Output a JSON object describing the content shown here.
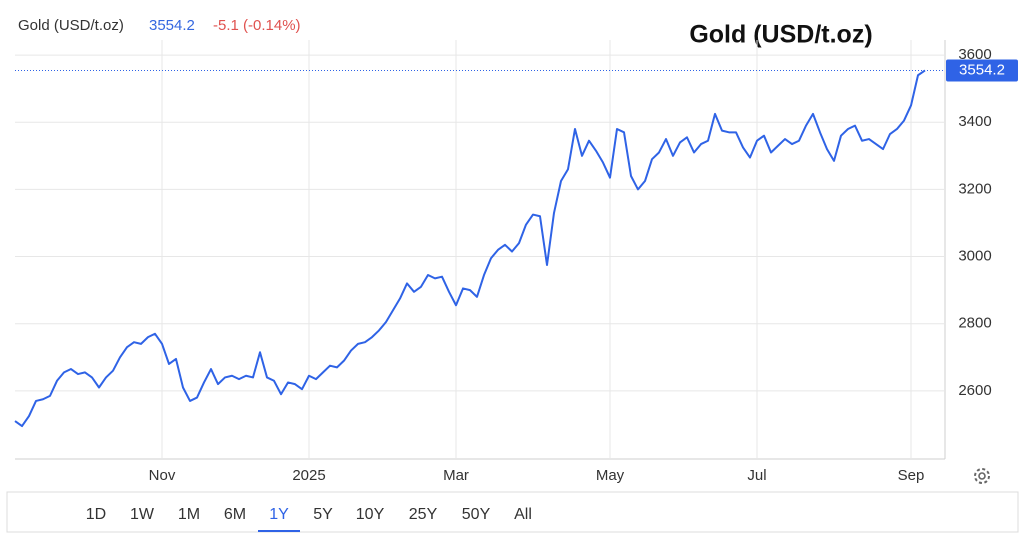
{
  "chart_data": {
    "type": "line",
    "title": "Gold (USD/t.oz)",
    "change": "-5.1 (-0.14%)",
    "categories": [
      null,
      null,
      null,
      null,
      null,
      null,
      null,
      null,
      null,
      null,
      null,
      null,
      null,
      null,
      null,
      null,
      null,
      null,
      null,
      null,
      null,
      "Nov",
      null,
      null,
      null,
      null,
      null,
      null,
      null,
      null,
      null,
      null,
      null,
      null,
      null,
      null,
      null,
      null,
      null,
      null,
      null,
      null,
      "2025",
      null,
      null,
      null,
      null,
      null,
      null,
      null,
      null,
      null,
      null,
      null,
      null,
      null,
      null,
      null,
      null,
      null,
      null,
      null,
      null,
      "Mar",
      null,
      null,
      null,
      null,
      null,
      null,
      null,
      null,
      null,
      null,
      null,
      null,
      null,
      null,
      null,
      null,
      null,
      null,
      null,
      null,
      null,
      "May",
      null,
      null,
      null,
      null,
      null,
      null,
      null,
      null,
      null,
      null,
      null,
      null,
      null,
      null,
      null,
      null,
      null,
      null,
      null,
      null,
      "Jul",
      null,
      null,
      null,
      null,
      null,
      null,
      null,
      null,
      null,
      null,
      null,
      null,
      null,
      null,
      null,
      null,
      null,
      null,
      null,
      null,
      null,
      "Sep",
      null,
      null
    ],
    "values": [
      2510,
      2495,
      2525,
      2570,
      2575,
      2585,
      2630,
      2655,
      2665,
      2650,
      2655,
      2640,
      2610,
      2640,
      2660,
      2700,
      2730,
      2745,
      2740,
      2760,
      2770,
      2740,
      2680,
      2695,
      2610,
      2570,
      2580,
      2625,
      2665,
      2620,
      2640,
      2645,
      2635,
      2645,
      2640,
      2715,
      2640,
      2630,
      2590,
      2625,
      2620,
      2605,
      2645,
      2635,
      2655,
      2675,
      2670,
      2690,
      2720,
      2740,
      2745,
      2760,
      2780,
      2805,
      2840,
      2875,
      2920,
      2895,
      2910,
      2945,
      2935,
      2940,
      2895,
      2855,
      2905,
      2900,
      2880,
      2945,
      2995,
      3020,
      3035,
      3015,
      3040,
      3095,
      3125,
      3120,
      2975,
      3130,
      3225,
      3260,
      3380,
      3300,
      3345,
      3315,
      3280,
      3235,
      3380,
      3370,
      3240,
      3200,
      3225,
      3290,
      3310,
      3350,
      3300,
      3340,
      3355,
      3310,
      3335,
      3345,
      3425,
      3375,
      3370,
      3370,
      3325,
      3295,
      3345,
      3360,
      3310,
      3330,
      3350,
      3335,
      3345,
      3390,
      3425,
      3370,
      3320,
      3285,
      3360,
      3380,
      3390,
      3345,
      3350,
      3335,
      3320,
      3365,
      3380,
      3405,
      3450,
      3540,
      3554.2
    ],
    "color": "#2f63e6",
    "ylim": [
      2400,
      3645
    ],
    "yticks": [
      2600,
      2800,
      3000,
      3200,
      3400,
      3600
    ],
    "grid": true
  },
  "range_buttons": [
    "1D",
    "1W",
    "1M",
    "6M",
    "1Y",
    "5Y",
    "10Y",
    "25Y",
    "50Y",
    "All"
  ],
  "selected_range": "1Y"
}
